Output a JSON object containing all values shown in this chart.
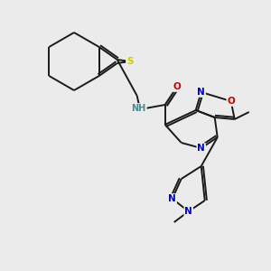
{
  "background_color": "#ebebeb",
  "bond_color": "#1a1a1a",
  "atom_colors": {
    "S": "#cccc00",
    "N": "#0000cc",
    "O": "#cc0000",
    "C": "#1a1a1a",
    "H": "#4a8a8a",
    "NH": "#4a8a8a"
  },
  "figsize": [
    3.0,
    3.0
  ],
  "dpi": 100
}
